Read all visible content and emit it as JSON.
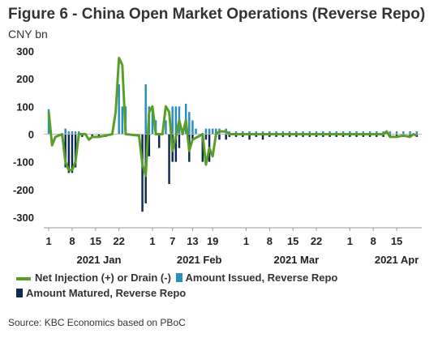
{
  "title": "Figure 6 - China Open Market Operations (Reverse Repo)",
  "subtitle": "CNY bn",
  "source": "Source: KBC Economics based on PBoC",
  "colors": {
    "net": "#5a9e2a",
    "issued": "#2a8fbd",
    "matured": "#0f2b4f"
  },
  "chart_data": {
    "type": "bar",
    "title": "Figure 6 - China Open Market Operations (Reverse Repo)",
    "ylabel": "CNY bn",
    "ylim": [
      -300,
      300
    ],
    "yticks": [
      300,
      200,
      100,
      0,
      -100,
      -200,
      -300
    ],
    "x_tick_labels": [
      "1",
      "8",
      "15",
      "22",
      "1",
      "7",
      "13",
      "19",
      "1",
      "8",
      "15",
      "22",
      "1",
      "8",
      "15"
    ],
    "x_tick_positions": [
      0,
      7,
      14,
      21,
      31,
      37,
      43,
      49,
      59,
      66,
      73,
      80,
      90,
      97,
      104
    ],
    "month_labels": [
      {
        "label": "2021 Jan",
        "x": 15
      },
      {
        "label": "2021 Feb",
        "x": 45
      },
      {
        "label": "2021 Mar",
        "x": 74
      },
      {
        "label": "2021 Apr",
        "x": 104
      }
    ],
    "x_count": 112,
    "series": [
      {
        "name": "Net Injection (+) or Drain (-)",
        "kind": "line",
        "points": [
          [
            0,
            80
          ],
          [
            1,
            -40
          ],
          [
            2,
            -10
          ],
          [
            4,
            0
          ],
          [
            5,
            -100
          ],
          [
            6,
            -130
          ],
          [
            7,
            -130
          ],
          [
            8,
            -100
          ],
          [
            9,
            0
          ],
          [
            11,
            0
          ],
          [
            12,
            -20
          ],
          [
            13,
            -10
          ],
          [
            15,
            -10
          ],
          [
            17,
            -5
          ],
          [
            19,
            0
          ],
          [
            20,
            80
          ],
          [
            21,
            275
          ],
          [
            22,
            250
          ],
          [
            23,
            0
          ],
          [
            27,
            -5
          ],
          [
            28,
            -110
          ],
          [
            29,
            -150
          ],
          [
            30,
            80
          ],
          [
            31,
            100
          ],
          [
            32,
            0
          ],
          [
            34,
            0
          ],
          [
            35,
            100
          ],
          [
            36,
            80
          ],
          [
            37,
            -60
          ],
          [
            38,
            -10
          ],
          [
            39,
            50
          ],
          [
            40,
            0
          ],
          [
            41,
            50
          ],
          [
            42,
            -60
          ],
          [
            43,
            -20
          ],
          [
            46,
            0
          ],
          [
            47,
            -110
          ],
          [
            48,
            -50
          ],
          [
            49,
            -80
          ],
          [
            50,
            0
          ],
          [
            51,
            10
          ],
          [
            53,
            10
          ],
          [
            54,
            0
          ],
          [
            56,
            0
          ],
          [
            58,
            0
          ],
          [
            60,
            0
          ],
          [
            62,
            0
          ],
          [
            64,
            0
          ],
          [
            66,
            0
          ],
          [
            68,
            0
          ],
          [
            70,
            0
          ],
          [
            72,
            0
          ],
          [
            74,
            0
          ],
          [
            76,
            0
          ],
          [
            78,
            0
          ],
          [
            80,
            0
          ],
          [
            82,
            0
          ],
          [
            84,
            0
          ],
          [
            86,
            0
          ],
          [
            88,
            0
          ],
          [
            90,
            0
          ],
          [
            92,
            0
          ],
          [
            94,
            0
          ],
          [
            96,
            0
          ],
          [
            98,
            0
          ],
          [
            100,
            0
          ],
          [
            101,
            10
          ],
          [
            102,
            -10
          ],
          [
            104,
            -10
          ],
          [
            106,
            -5
          ],
          [
            108,
            -10
          ],
          [
            109,
            0
          ],
          [
            110,
            -5
          ]
        ]
      },
      {
        "name": "Amount Issued, Reverse Repo",
        "kind": "bar",
        "points": [
          [
            0,
            90
          ],
          [
            5,
            20
          ],
          [
            6,
            10
          ],
          [
            7,
            10
          ],
          [
            8,
            10
          ],
          [
            9,
            10
          ],
          [
            21,
            180
          ],
          [
            22,
            100
          ],
          [
            23,
            100
          ],
          [
            29,
            180
          ],
          [
            30,
            100
          ],
          [
            31,
            100
          ],
          [
            32,
            50
          ],
          [
            35,
            50
          ],
          [
            37,
            100
          ],
          [
            38,
            100
          ],
          [
            39,
            100
          ],
          [
            41,
            110
          ],
          [
            42,
            80
          ],
          [
            43,
            50
          ],
          [
            44,
            20
          ],
          [
            47,
            20
          ],
          [
            48,
            20
          ],
          [
            49,
            20
          ],
          [
            50,
            20
          ],
          [
            51,
            20
          ],
          [
            53,
            20
          ],
          [
            54,
            10
          ],
          [
            56,
            10
          ],
          [
            58,
            10
          ],
          [
            60,
            10
          ],
          [
            62,
            10
          ],
          [
            64,
            10
          ],
          [
            66,
            10
          ],
          [
            68,
            10
          ],
          [
            70,
            10
          ],
          [
            72,
            10
          ],
          [
            74,
            10
          ],
          [
            76,
            10
          ],
          [
            78,
            10
          ],
          [
            80,
            10
          ],
          [
            82,
            10
          ],
          [
            84,
            10
          ],
          [
            86,
            10
          ],
          [
            88,
            10
          ],
          [
            90,
            10
          ],
          [
            92,
            10
          ],
          [
            94,
            10
          ],
          [
            96,
            10
          ],
          [
            98,
            10
          ],
          [
            100,
            10
          ],
          [
            101,
            10
          ],
          [
            102,
            10
          ],
          [
            104,
            10
          ],
          [
            106,
            10
          ],
          [
            108,
            10
          ],
          [
            110,
            10
          ]
        ]
      },
      {
        "name": "Amount Matured, Reverse Repo",
        "kind": "bar",
        "points": [
          [
            5,
            -120
          ],
          [
            6,
            -140
          ],
          [
            7,
            -140
          ],
          [
            8,
            -120
          ],
          [
            9,
            -10
          ],
          [
            10,
            -10
          ],
          [
            13,
            -10
          ],
          [
            15,
            -10
          ],
          [
            17,
            -10
          ],
          [
            28,
            -280
          ],
          [
            29,
            -250
          ],
          [
            30,
            -80
          ],
          [
            33,
            -50
          ],
          [
            36,
            -180
          ],
          [
            37,
            -100
          ],
          [
            38,
            -100
          ],
          [
            39,
            -50
          ],
          [
            42,
            -100
          ],
          [
            43,
            -20
          ],
          [
            46,
            -100
          ],
          [
            47,
            -20
          ],
          [
            48,
            -100
          ],
          [
            50,
            -10
          ],
          [
            51,
            -20
          ],
          [
            53,
            -20
          ],
          [
            54,
            -10
          ],
          [
            56,
            -10
          ],
          [
            58,
            -10
          ],
          [
            60,
            -20
          ],
          [
            62,
            -10
          ],
          [
            64,
            -20
          ],
          [
            66,
            -10
          ],
          [
            68,
            -10
          ],
          [
            70,
            -10
          ],
          [
            72,
            -10
          ],
          [
            74,
            -10
          ],
          [
            76,
            -10
          ],
          [
            78,
            -10
          ],
          [
            80,
            -10
          ],
          [
            82,
            -10
          ],
          [
            84,
            -10
          ],
          [
            86,
            -10
          ],
          [
            88,
            -10
          ],
          [
            90,
            -10
          ],
          [
            92,
            -10
          ],
          [
            94,
            -10
          ],
          [
            96,
            -10
          ],
          [
            98,
            -10
          ],
          [
            100,
            -10
          ],
          [
            102,
            -10
          ],
          [
            104,
            -10
          ],
          [
            106,
            -10
          ],
          [
            108,
            -10
          ],
          [
            110,
            -10
          ]
        ]
      }
    ],
    "legend_position": "bottom",
    "grid": false
  }
}
